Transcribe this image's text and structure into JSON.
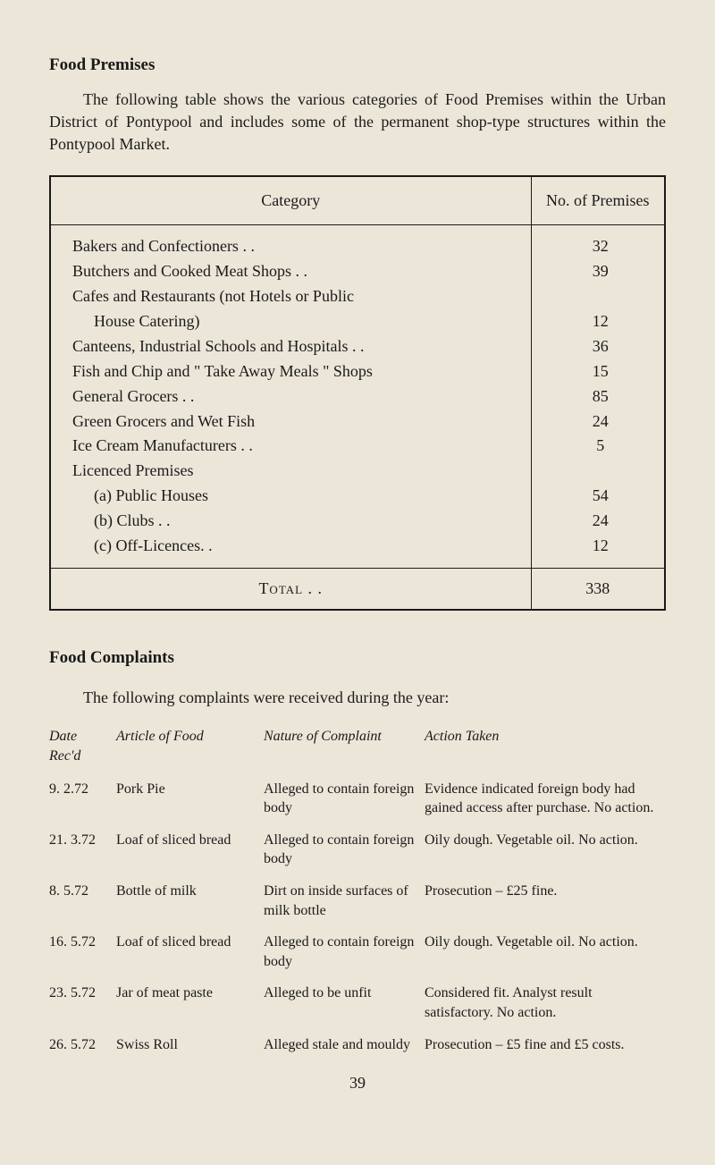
{
  "heading1": "Food Premises",
  "intro": "The following table shows the various categories of Food Premises within the Urban District of Pontypool and includes some of the permanent shop-type structures within the Pontypool Market.",
  "premises": {
    "header_category": "Category",
    "header_count": "No. of Premises",
    "rows": [
      {
        "label": "Bakers and Confectioners  . .",
        "count": "32",
        "indent": ""
      },
      {
        "label": "Butchers and Cooked Meat Shops   . .",
        "count": "39",
        "indent": ""
      },
      {
        "label": "Cafes and Restaurants (not Hotels or Public",
        "count": "",
        "indent": ""
      },
      {
        "label": "House Catering)",
        "count": "12",
        "indent": "indent-a"
      },
      {
        "label": "Canteens, Industrial Schools and Hospitals   . .",
        "count": "36",
        "indent": ""
      },
      {
        "label": "Fish and Chip and \" Take Away Meals \" Shops",
        "count": "15",
        "indent": ""
      },
      {
        "label": "General Grocers . .",
        "count": "85",
        "indent": ""
      },
      {
        "label": "Green Grocers and Wet Fish",
        "count": "24",
        "indent": ""
      },
      {
        "label": "Ice Cream Manufacturers  . .",
        "count": "5",
        "indent": ""
      },
      {
        "label": "Licenced Premises",
        "count": "",
        "indent": ""
      },
      {
        "label": "(a) Public Houses",
        "count": "54",
        "indent": "indent-b"
      },
      {
        "label": "(b) Clubs     . .",
        "count": "24",
        "indent": "indent-b"
      },
      {
        "label": "(c) Off-Licences. .",
        "count": "12",
        "indent": "indent-b"
      }
    ],
    "total_label": "Total   . .",
    "total_count": "338"
  },
  "heading2": "Food Complaints",
  "complaints_intro": "The following complaints were received during the year:",
  "complaints": {
    "headers": {
      "date": "Date Rec'd",
      "article": "Article of Food",
      "nature": "Nature of Complaint",
      "action": "Action Taken"
    },
    "rows": [
      {
        "date": "9. 2.72",
        "article": "Pork Pie",
        "nature": "Alleged to contain foreign body",
        "action": "Evidence indicated foreign body had gained access after purchase. No action."
      },
      {
        "date": "21. 3.72",
        "article": "Loaf of sliced bread",
        "nature": "Alleged to contain foreign body",
        "action": "Oily dough. Vegetable oil. No action."
      },
      {
        "date": "8. 5.72",
        "article": "Bottle of milk",
        "nature": "Dirt on inside surfaces of milk bottle",
        "action": "Prosecution – £25 fine."
      },
      {
        "date": "16. 5.72",
        "article": "Loaf of sliced bread",
        "nature": "Alleged to contain foreign body",
        "action": "Oily dough. Vegetable oil. No action."
      },
      {
        "date": "23. 5.72",
        "article": "Jar of meat paste",
        "nature": "Alleged to be unfit",
        "action": "Considered fit. Analyst result satisfactory. No action."
      },
      {
        "date": "26. 5.72",
        "article": "Swiss Roll",
        "nature": "Alleged stale and mouldy",
        "action": "Prosecution – £5 fine and £5 costs."
      }
    ]
  },
  "page_number": "39"
}
